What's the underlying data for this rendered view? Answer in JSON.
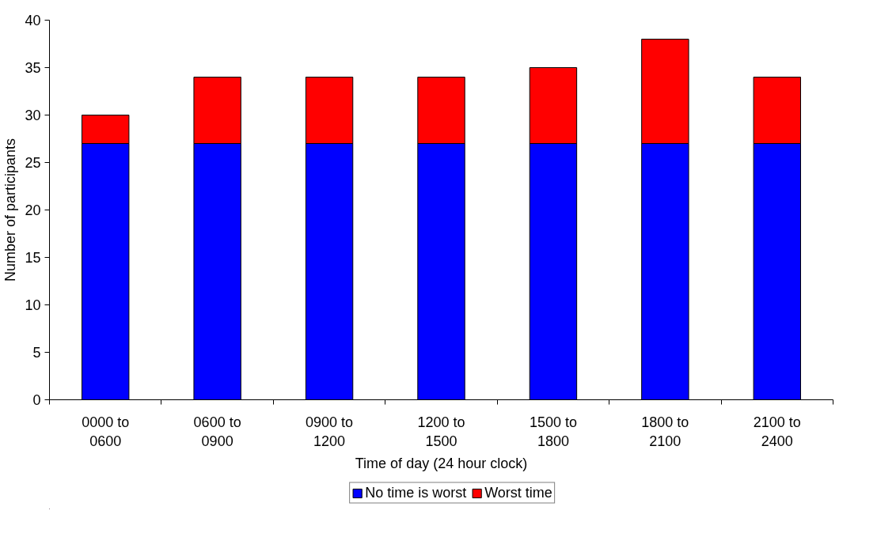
{
  "chart_data": {
    "type": "bar",
    "stacked": true,
    "xlabel": "Time of day (24 hour clock)",
    "ylabel": "Number of participants",
    "categories": [
      "0000 to 0600",
      "0600 to 0900",
      "0900 to 1200",
      "1200 to 1500",
      "1500 to 1800",
      "1800 to 2100",
      "2100 to 2400"
    ],
    "series": [
      {
        "name": "No time is worst",
        "color": "#0000ff",
        "values": [
          27,
          27,
          27,
          27,
          27,
          27,
          27
        ]
      },
      {
        "name": "Worst time",
        "color": "#ff0000",
        "values": [
          3,
          7,
          7,
          7,
          8,
          11,
          7
        ]
      }
    ],
    "ylim": [
      0,
      40
    ],
    "yticks": [
      0,
      5,
      10,
      15,
      20,
      25,
      30,
      35,
      40
    ],
    "grid": false,
    "legend": "bottom"
  }
}
